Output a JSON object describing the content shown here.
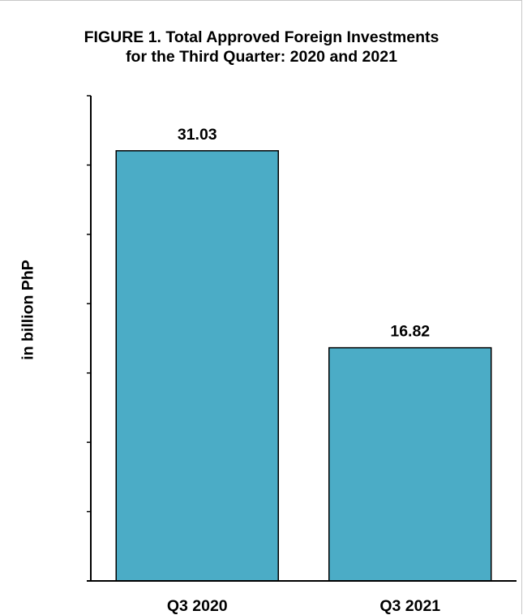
{
  "chart_data": {
    "type": "bar",
    "title_lines": [
      "FIGURE 1. Total Approved Foreign Investments",
      "for the Third Quarter: 2020 and 2021"
    ],
    "ylabel": "in billion PhP",
    "xlabel": "",
    "categories": [
      "Q3 2020",
      "Q3 2021"
    ],
    "values": [
      31.03,
      16.82
    ],
    "data_labels": [
      "31.03",
      "16.82"
    ],
    "ylim": [
      0,
      35
    ],
    "y_tick_step": 5,
    "y_tick_labels_shown": false,
    "grid": false,
    "legend": "none",
    "colors": {
      "bar_fill": "#4BACC6",
      "bar_stroke": "#000000",
      "axis": "#000000"
    }
  }
}
